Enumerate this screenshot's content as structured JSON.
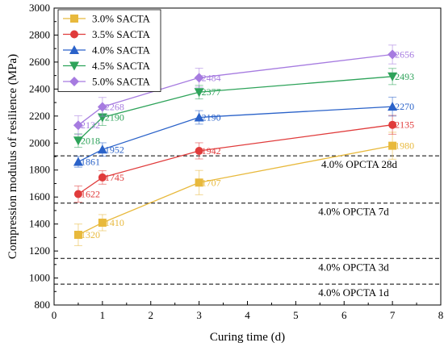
{
  "chart_data": {
    "type": "line",
    "xlabel": "Curing time (d)",
    "ylabel": "Compression modulus of resilience (MPa)",
    "xlim": [
      0,
      8
    ],
    "ylim": [
      800,
      3000
    ],
    "xticks": [
      0,
      1,
      2,
      3,
      4,
      5,
      6,
      7,
      8
    ],
    "yticks": [
      800,
      1000,
      1200,
      1400,
      1600,
      1800,
      2000,
      2200,
      2400,
      2600,
      2800,
      3000
    ],
    "grid": false,
    "legend_position": "top-left",
    "x": [
      0.5,
      1,
      3,
      7
    ],
    "series": [
      {
        "name": "3.0% SACTA",
        "color": "#E8B93C",
        "marker": "square",
        "values": [
          1320,
          1410,
          1707,
          1980
        ],
        "errors": [
          80,
          60,
          90,
          100
        ],
        "labels": [
          "1320",
          "1410",
          "1707",
          "1980"
        ]
      },
      {
        "name": "3.5% SACTA",
        "color": "#E03B3B",
        "marker": "circle",
        "values": [
          1622,
          1745,
          1942,
          2135
        ],
        "errors": [
          60,
          50,
          60,
          70
        ],
        "labels": [
          "1622",
          "1745",
          "1942",
          "2135"
        ]
      },
      {
        "name": "4.0% SACTA",
        "color": "#2A62C9",
        "marker": "triangle-up",
        "values": [
          1861,
          1952,
          2190,
          2270
        ],
        "errors": [
          40,
          50,
          50,
          70
        ],
        "labels": [
          "1861",
          "1952",
          "2190",
          "2270"
        ]
      },
      {
        "name": "4.5% SACTA",
        "color": "#2EA35A",
        "marker": "triangle-down",
        "values": [
          2018,
          2190,
          2377,
          2493
        ],
        "errors": [
          50,
          60,
          50,
          60
        ],
        "labels": [
          "2018",
          "2190",
          "2377",
          "2493"
        ]
      },
      {
        "name": "5.0% SACTA",
        "color": "#A67BE0",
        "marker": "diamond",
        "values": [
          2132,
          2268,
          2484,
          2656
        ],
        "errors": [
          70,
          70,
          70,
          70
        ],
        "labels": [
          "2132",
          "2268",
          "2484",
          "2656"
        ]
      }
    ],
    "reference_lines": [
      {
        "label": "4.0% OPCTA 28d",
        "value": 1905
      },
      {
        "label": "4.0% OPCTA 7d",
        "value": 1555
      },
      {
        "label": "4.0% OPCTA 3d",
        "value": 1145
      },
      {
        "label": "4.0% OPCTA 1d",
        "value": 955
      }
    ]
  }
}
